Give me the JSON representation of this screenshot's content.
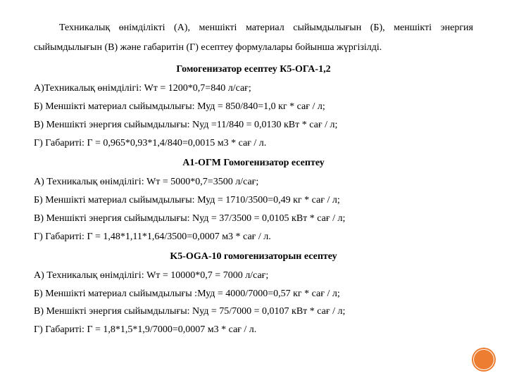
{
  "intro": "Техникалық өнімділікті (А), меншікті материал сыйымдылығын (Б), меншікті энергия сыйымдылығын (В) және габаритін (Г) есептеу  формулалары бойынша жүргізілді.",
  "sections": [
    {
      "heading": "Гомогенизатор есептеу К5-ОГА-1,2",
      "lines": [
        "А)Техникалық өнімділігі: Wт = 1200*0,7=840 л/сағ;",
        "Б) Меншікті материал сыйымдылығы: Муд = 850/840=1,0 кг * сағ / л;",
        "В) Меншікті энергия сыйымдылығы: Nуд =11/840 = 0,0130 кВт * сағ / л;",
        "Г) Габариті: Г = 0,965*0,93*1,4/840=0,0015 м3 * сағ / л."
      ]
    },
    {
      "heading": "A1-ОГМ Гомогенизатор есептеу",
      "lines": [
        "А) Техникалық өнімділігі: Wт = 5000*0,7=3500 л/сағ;",
        "Б) Меншікті материал сыйымдылығы: Муд = 1710/3500=0,49 кг * сағ / л;",
        "В) Меншікті энергия сыйымдылығы: Nуд = 37/3500 = 0,0105 кВт * сағ / л;",
        "Г) Габариті:  Г = 1,48*1,11*1,64/3500=0,0007 м3 * сағ / л."
      ]
    },
    {
      "heading": "K5-OGA-10 гомогенизаторын есептеу",
      "lines": [
        "А) Техникалық өнімділігі: Wт = 10000*0,7 = 7000 л/сағ;",
        "Б) Меншікті материал сыйымдылығы :Муд = 4000/7000=0,57 кг * сағ / л;",
        "В) Меншікті энергия сыйымдылығы: Nуд = 75/7000 = 0,0107 кВт * сағ / л;",
        "Г) Габариті:  Г = 1,8*1,5*1,9/7000=0,0007 м3 * сағ / л."
      ]
    }
  ],
  "accent_color": "#ed7d31"
}
